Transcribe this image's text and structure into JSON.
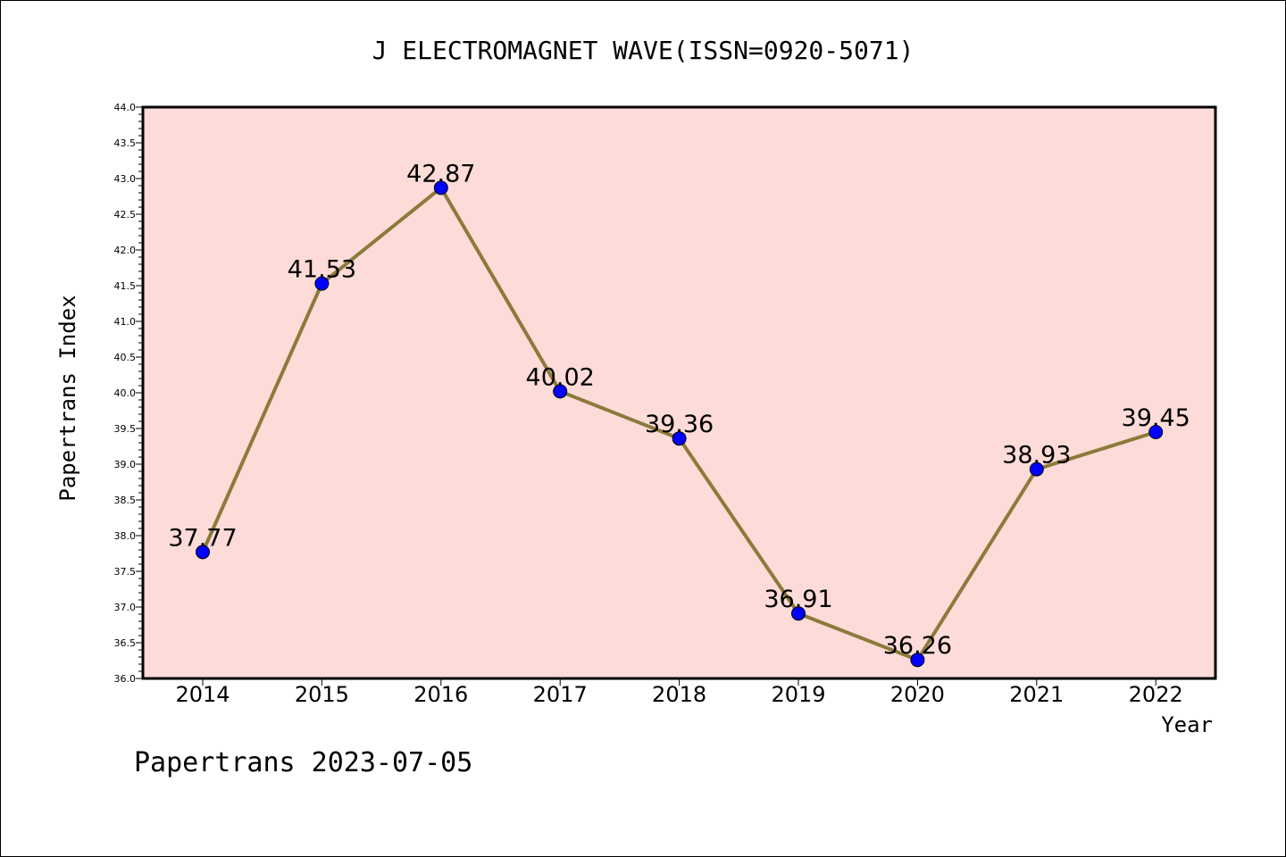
{
  "chart_data": {
    "type": "line",
    "title": "J ELECTROMAGNET WAVE(ISSN=0920-5071)",
    "xlabel": "Year",
    "ylabel": "Papertrans Index",
    "categories": [
      "2014",
      "2015",
      "2016",
      "2017",
      "2018",
      "2019",
      "2020",
      "2021",
      "2022"
    ],
    "values": [
      37.77,
      41.53,
      42.87,
      40.02,
      39.36,
      36.91,
      36.26,
      38.93,
      39.45
    ],
    "value_labels": [
      "37.77",
      "41.53",
      "42.87",
      "40.02",
      "39.36",
      "36.91",
      "36.26",
      "38.93",
      "39.45"
    ],
    "ylim": [
      36.0,
      44.0
    ],
    "y_ticks": [
      "36.0",
      "36.5",
      "37.0",
      "37.5",
      "38.0",
      "38.5",
      "39.0",
      "39.5",
      "40.0",
      "40.5",
      "41.0",
      "41.5",
      "42.0",
      "42.5",
      "43.0",
      "43.5",
      "44.0"
    ],
    "grid": false,
    "footer": "Papertrans 2023-07-05",
    "colors": {
      "plot_background": "#fddbd8",
      "line": "#8b7a3a",
      "marker": "#0000ff",
      "axis": "#000000"
    }
  }
}
